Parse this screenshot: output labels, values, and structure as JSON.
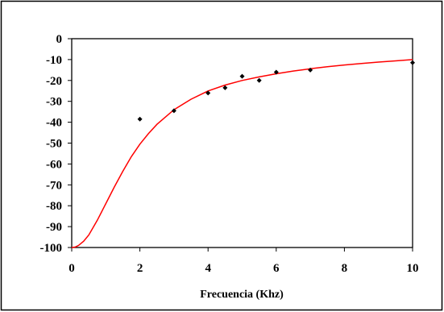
{
  "chart_data": {
    "type": "scatter",
    "title": "",
    "xlabel": "Frecuencia (Khz)",
    "ylabel": "",
    "xlim": [
      0,
      10
    ],
    "ylim": [
      -100,
      0
    ],
    "x_ticks": [
      "0",
      "2",
      "4",
      "6",
      "8",
      "10"
    ],
    "y_ticks": [
      "0",
      "-10",
      "-20",
      "-30",
      "-40",
      "-50",
      "-60",
      "-70",
      "-80",
      "-90",
      "-100"
    ],
    "grid": false,
    "legend": "none",
    "colors": {
      "markers": "#000000",
      "fit_line": "#ff0000",
      "frame": "#000000",
      "background": "#ffffff"
    },
    "series": [
      {
        "kind": "points",
        "marker": "diamond",
        "x": [
          2,
          3,
          4,
          4.5,
          5,
          5.5,
          6,
          7,
          10
        ],
        "y": [
          -38.5,
          -34.5,
          -26,
          -23.5,
          -18,
          -20,
          -16,
          -15,
          -11.5
        ]
      },
      {
        "kind": "line",
        "x": [
          0,
          0.1,
          0.2,
          0.35,
          0.5,
          0.75,
          1.0,
          1.25,
          1.5,
          1.75,
          2.0,
          2.25,
          2.5,
          3.0,
          3.5,
          4.0,
          4.5,
          5.0,
          5.5,
          6.0,
          6.5,
          7.0,
          7.5,
          8.0,
          8.5,
          9.0,
          9.5,
          10.0
        ],
        "y": [
          -100,
          -99.8,
          -99,
          -97,
          -94,
          -87,
          -79,
          -71,
          -63.5,
          -56.5,
          -50.5,
          -45.5,
          -41,
          -34,
          -29,
          -25,
          -22.2,
          -20,
          -18.3,
          -16.8,
          -15.5,
          -14.4,
          -13.4,
          -12.6,
          -11.9,
          -11.2,
          -10.6,
          -10
        ]
      }
    ]
  }
}
